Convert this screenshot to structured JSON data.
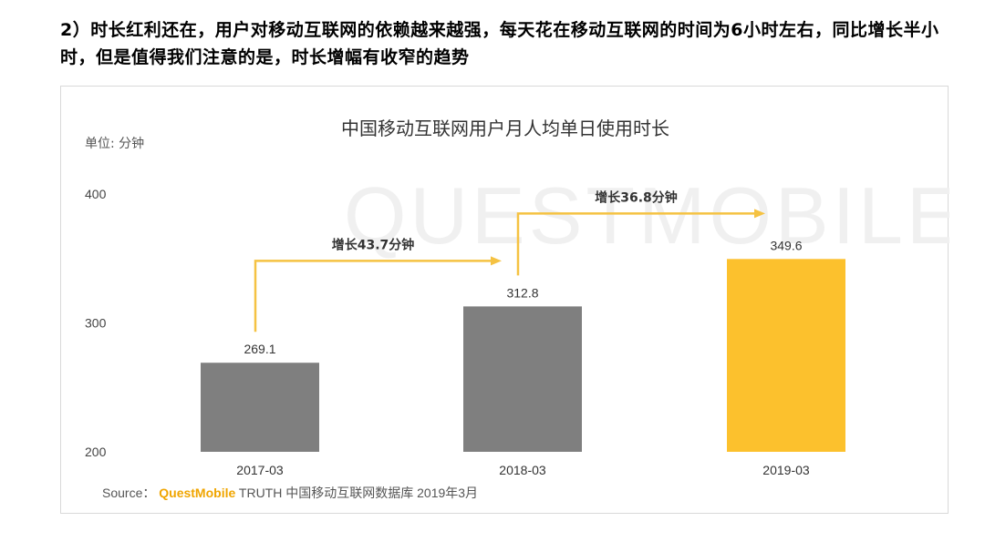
{
  "heading": "2）时长红利还在，用户对移动互联网的依赖越来越强，每天花在移动互联网的时间为6小时左右，同比增长半小时，但是值得我们注意的是，时长增幅有收窄的趋势",
  "watermark": "QUESTMOBILE",
  "source": {
    "prefix": "Source：",
    "brand": "QuestMobile",
    "rest": " TRUTH 中国移动互联网数据库 2019年3月"
  },
  "colors": {
    "bar_gray": "#7f7f7f",
    "bar_highlight": "#fcc12d",
    "arrow": "#f5c242",
    "watermark": "#f0f0f0"
  },
  "chart_data": {
    "type": "bar",
    "title": "中国移动互联网用户月人均单日使用时长",
    "unit_label": "单位: 分钟",
    "categories": [
      "2017-03",
      "2018-03",
      "2019-03"
    ],
    "values": [
      269.1,
      312.8,
      349.6
    ],
    "value_labels": [
      "269.1",
      "312.8",
      "349.6"
    ],
    "highlight_index": 2,
    "ylim": [
      200,
      400
    ],
    "yticks": [
      "200",
      "300",
      "400"
    ],
    "grid": false,
    "annotations": [
      {
        "from": 0,
        "to": 1,
        "label": "增长43.7分钟"
      },
      {
        "from": 1,
        "to": 2,
        "label": "增长36.8分钟"
      }
    ]
  }
}
